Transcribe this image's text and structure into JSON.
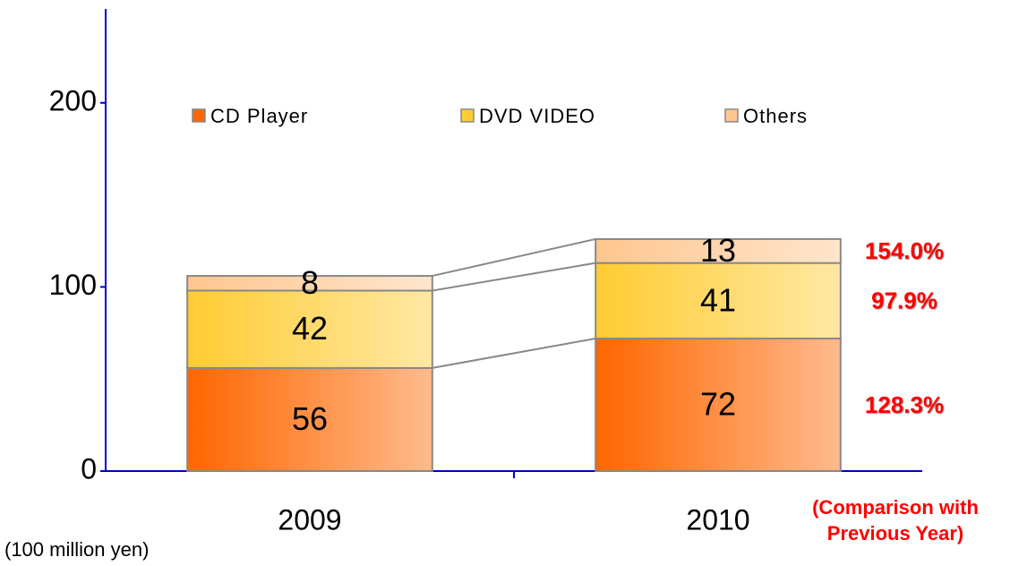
{
  "chart_data": {
    "type": "stacked_bar",
    "categories": [
      "2009",
      "2010"
    ],
    "series": [
      {
        "name": "CD Player",
        "color": "#ff6600",
        "values": [
          56,
          72
        ],
        "comparison_label": "128.3%"
      },
      {
        "name": "DVD VIDEO",
        "color": "#ffcc33",
        "values": [
          42,
          41
        ],
        "comparison_label": "97.9%"
      },
      {
        "name": "Others",
        "color": "#ffc68f",
        "values": [
          8,
          13
        ],
        "comparison_label": "154.0%"
      }
    ],
    "ylim": [
      0,
      250
    ],
    "yticks": [
      0,
      100,
      200
    ],
    "axis_label": "(100 million yen)",
    "comparison_title": [
      "(Comparison with",
      "Previous Year)"
    ],
    "axis_color": "#0000cc",
    "comparison_color": "#ff0000"
  }
}
